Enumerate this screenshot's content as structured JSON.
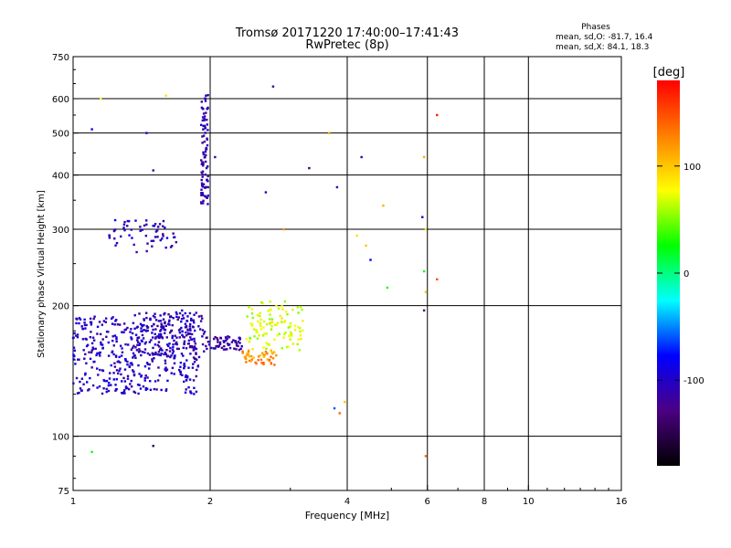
{
  "chart_data": {
    "type": "scatter",
    "title": "Tromsø 20171220 17:40:00–17:41:43",
    "subtitle": "RwPretec (8p)",
    "xlabel": "Frequency [MHz]",
    "ylabel": "Stationary phase Virtual Height [km]",
    "x_scale": "log",
    "y_scale": "log",
    "xlim": [
      1,
      16
    ],
    "ylim": [
      75,
      750
    ],
    "x_ticks": [
      1,
      2,
      4,
      6,
      8,
      10,
      16
    ],
    "y_ticks": [
      75,
      100,
      200,
      300,
      400,
      500,
      600,
      750
    ],
    "x_grid": [
      2,
      4,
      6,
      8,
      10
    ],
    "y_grid": [
      100,
      200,
      300,
      400,
      500,
      600
    ],
    "grid": true,
    "phase_stats": {
      "title": "Phases",
      "line_o": "mean, sd,O: -81.7, 16.4",
      "line_x": "mean, sd,X:  84.1, 18.3"
    },
    "colorbar": {
      "label": "[deg]",
      "range": [
        -180,
        180
      ],
      "ticks": [
        100,
        0,
        -100
      ],
      "colors": [
        "#ff0000",
        "#ff7f00",
        "#ffff00",
        "#00ff00",
        "#00ffff",
        "#0000ff",
        "#4b0082",
        "#000000"
      ]
    },
    "trace_groups": [
      {
        "f_range": [
          1.0,
          1.9
        ],
        "h_range": [
          125,
          190
        ],
        "phase": -100,
        "count": 420
      },
      {
        "f_range": [
          1.35,
          1.95
        ],
        "h_range": [
          150,
          195
        ],
        "phase": -110,
        "count": 150
      },
      {
        "f_range": [
          1.2,
          1.7
        ],
        "h_range": [
          265,
          315
        ],
        "phase": -105,
        "count": 60
      },
      {
        "f_range": [
          1.91,
          1.98
        ],
        "h_range": [
          340,
          620
        ],
        "phase": -110,
        "count": 90
      },
      {
        "f_range": [
          1.95,
          2.35
        ],
        "h_range": [
          158,
          170
        ],
        "phase": -115,
        "count": 60
      },
      {
        "f_range": [
          2.4,
          3.2
        ],
        "h_range": [
          158,
          205
        ],
        "phase": 70,
        "count": 110
      },
      {
        "f_range": [
          2.35,
          2.8
        ],
        "h_range": [
          146,
          158
        ],
        "phase": 120,
        "count": 50
      }
    ],
    "isolated_points": [
      {
        "x": 1.1,
        "y": 92,
        "phase": 20
      },
      {
        "x": 1.5,
        "y": 95,
        "phase": -150
      },
      {
        "x": 1.15,
        "y": 600,
        "phase": 80
      },
      {
        "x": 1.1,
        "y": 510,
        "phase": -90
      },
      {
        "x": 1.45,
        "y": 500,
        "phase": -90
      },
      {
        "x": 1.6,
        "y": 610,
        "phase": 90
      },
      {
        "x": 1.5,
        "y": 410,
        "phase": -120
      },
      {
        "x": 2.05,
        "y": 440,
        "phase": -110
      },
      {
        "x": 2.75,
        "y": 640,
        "phase": -120
      },
      {
        "x": 2.65,
        "y": 365,
        "phase": -100
      },
      {
        "x": 2.9,
        "y": 300,
        "phase": 120
      },
      {
        "x": 3.3,
        "y": 415,
        "phase": -140
      },
      {
        "x": 3.65,
        "y": 500,
        "phase": 110
      },
      {
        "x": 3.8,
        "y": 375,
        "phase": -110
      },
      {
        "x": 3.95,
        "y": 120,
        "phase": 100
      },
      {
        "x": 3.85,
        "y": 113,
        "phase": 140
      },
      {
        "x": 3.75,
        "y": 116,
        "phase": -60
      },
      {
        "x": 4.3,
        "y": 440,
        "phase": -110
      },
      {
        "x": 4.2,
        "y": 290,
        "phase": 90
      },
      {
        "x": 4.4,
        "y": 275,
        "phase": 100
      },
      {
        "x": 4.5,
        "y": 255,
        "phase": -80
      },
      {
        "x": 4.8,
        "y": 340,
        "phase": 110
      },
      {
        "x": 4.9,
        "y": 220,
        "phase": 30
      },
      {
        "x": 5.9,
        "y": 440,
        "phase": 110
      },
      {
        "x": 5.85,
        "y": 320,
        "phase": -100
      },
      {
        "x": 5.95,
        "y": 300,
        "phase": 90
      },
      {
        "x": 5.9,
        "y": 240,
        "phase": 20
      },
      {
        "x": 5.95,
        "y": 215,
        "phase": 100
      },
      {
        "x": 5.9,
        "y": 195,
        "phase": -130
      },
      {
        "x": 5.95,
        "y": 90,
        "phase": 140
      },
      {
        "x": 6.3,
        "y": 550,
        "phase": 170
      },
      {
        "x": 6.3,
        "y": 230,
        "phase": 150
      }
    ]
  }
}
